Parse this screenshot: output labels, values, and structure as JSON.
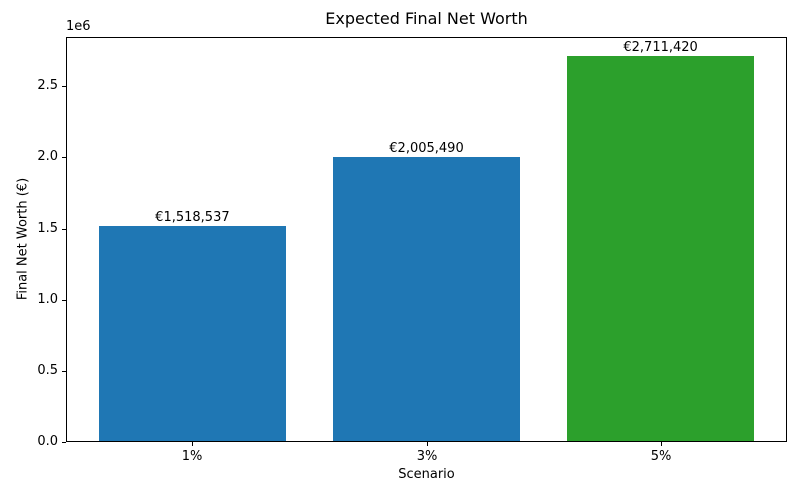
{
  "chart_data": {
    "type": "bar",
    "title": "Expected Final Net Worth",
    "xlabel": "Scenario",
    "ylabel": "Final Net Worth (€)",
    "y_offset_label": "1e6",
    "categories": [
      "1%",
      "3%",
      "5%"
    ],
    "values": [
      1518537,
      2005490,
      2711420
    ],
    "bar_labels": [
      "€1,518,537",
      "€2,005,490",
      "€2,711,420"
    ],
    "bar_colors": [
      "#1f77b4",
      "#1f77b4",
      "#2ca02c"
    ],
    "ylim": [
      0,
      2847000
    ],
    "yticks": [
      0,
      500000,
      1000000,
      1500000,
      2000000,
      2500000
    ],
    "ytick_labels": [
      "0.0",
      "0.5",
      "1.0",
      "1.5",
      "2.0",
      "2.5"
    ],
    "xlim": [
      -0.54,
      2.54
    ],
    "bar_width": 0.8,
    "grid": false,
    "legend": null,
    "spine_color": "#000000",
    "background_color": "#ffffff"
  }
}
